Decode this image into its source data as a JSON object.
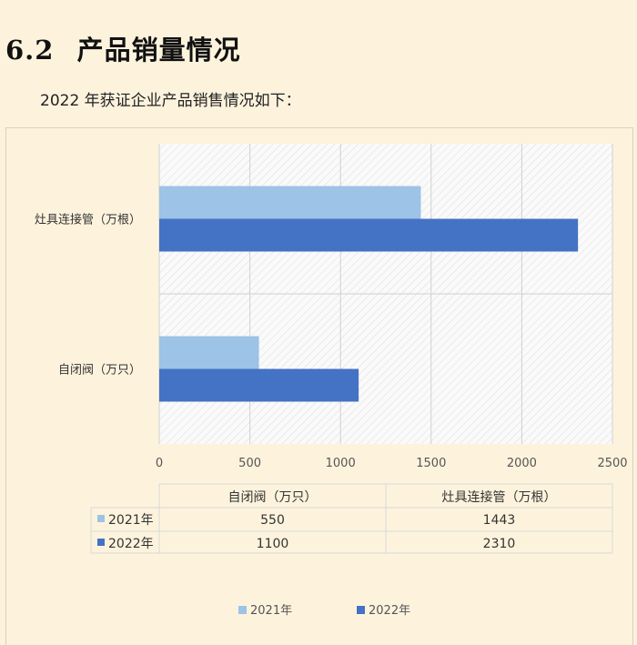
{
  "section": {
    "number": "6.2",
    "title": "产品销量情况",
    "subtitle": "2022 年获证企业产品销售情况如下："
  },
  "colors": {
    "series_2021": "#9dc3e6",
    "series_2022": "#4472c4",
    "grid": "#d0d0d0",
    "table_border": "#d8d8d8"
  },
  "chart_data": {
    "type": "bar",
    "orientation": "horizontal",
    "categories": [
      "自闭阀（万只）",
      "灶具连接管（万根）"
    ],
    "series": [
      {
        "name": "2021年",
        "values": [
          550,
          1443
        ]
      },
      {
        "name": "2022年",
        "values": [
          1100,
          2310
        ]
      }
    ],
    "xlim": [
      0,
      2500
    ],
    "x_ticks": [
      "0",
      "500",
      "1000",
      "1500",
      "2000",
      "2500"
    ],
    "grid": true,
    "legend": "bottom",
    "data_table": true
  }
}
